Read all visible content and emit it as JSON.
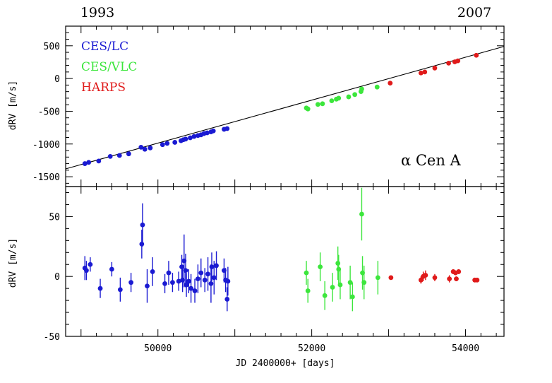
{
  "chart_data": [
    {
      "type": "scatter",
      "panel": "top",
      "ylabel": "dRV  [m/s]",
      "xlim": [
        48800,
        54500
      ],
      "ylim": [
        -1650,
        800
      ],
      "yticks": [
        500,
        0,
        -500,
        -1000,
        -1500
      ],
      "top_labels": {
        "left": "1993",
        "right": "2007"
      },
      "annotation": "α Cen  A",
      "legend": {
        "position": "top-left",
        "entries": [
          "CES/LC",
          "CES/VLC",
          "HARPS"
        ]
      },
      "colors": {
        "CES/LC": "#1a1ad2",
        "CES/VLC": "#3ce63c",
        "HARPS": "#e01a1a",
        "fit": "#000000"
      },
      "fit_line": {
        "x": [
          48800,
          54500
        ],
        "y": [
          -1380,
          490
        ]
      },
      "series": [
        {
          "name": "CES/LC",
          "x": [
            49050,
            49100,
            49230,
            49380,
            49500,
            49620,
            49780,
            49830,
            49900,
            50060,
            50120,
            50220,
            50300,
            50330,
            50360,
            50420,
            50470,
            50520,
            50560,
            50600,
            50640,
            50690,
            50720,
            50860,
            50900
          ],
          "y": [
            -1300,
            -1280,
            -1260,
            -1190,
            -1175,
            -1150,
            -1050,
            -1080,
            -1060,
            -1010,
            -990,
            -975,
            -950,
            -935,
            -925,
            -905,
            -885,
            -870,
            -860,
            -840,
            -830,
            -815,
            -800,
            -775,
            -765
          ]
        },
        {
          "name": "CES/VLC",
          "x": [
            51930,
            51950,
            52080,
            52140,
            52260,
            52320,
            52350,
            52480,
            52560,
            52640,
            52650,
            52850
          ],
          "y": [
            -450,
            -465,
            -395,
            -385,
            -340,
            -315,
            -300,
            -280,
            -245,
            -200,
            -160,
            -130
          ]
        },
        {
          "name": "HARPS",
          "x": [
            53020,
            53420,
            53470,
            53600,
            53780,
            53860,
            53900,
            54140
          ],
          "y": [
            -70,
            85,
            100,
            160,
            235,
            255,
            270,
            355
          ]
        }
      ]
    },
    {
      "type": "scatter",
      "panel": "bottom",
      "xlabel": "JD 2400000+ [days]",
      "ylabel": "dRV  [m/s]",
      "xlim": [
        48800,
        54500
      ],
      "ylim": [
        -50,
        75
      ],
      "xticks": [
        50000,
        52000,
        54000
      ],
      "yticks": [
        50,
        0,
        -50
      ],
      "series": [
        {
          "name": "CES/LC",
          "x": [
            49050,
            49070,
            49120,
            49250,
            49400,
            49510,
            49650,
            49790,
            49800,
            49860,
            49930,
            50090,
            50140,
            50190,
            50270,
            50310,
            50320,
            50340,
            50360,
            50370,
            50400,
            50430,
            50480,
            50520,
            50560,
            50610,
            50650,
            50690,
            50700,
            50730,
            50760,
            50860,
            50880,
            50900,
            50910
          ],
          "y": [
            7,
            5,
            10,
            -10,
            6,
            -11,
            -5,
            27,
            43,
            -8,
            4,
            -6,
            3,
            -5,
            -4,
            8,
            -3,
            13,
            5,
            -7,
            -4,
            -10,
            -12,
            -2,
            3,
            -3,
            2,
            -6,
            8,
            -1,
            9,
            5,
            -3,
            -19,
            -4
          ],
          "err": [
            10,
            8,
            6,
            8,
            6,
            10,
            8,
            12,
            18,
            14,
            12,
            8,
            10,
            8,
            8,
            10,
            10,
            22,
            14,
            10,
            10,
            12,
            10,
            12,
            12,
            10,
            14,
            16,
            12,
            14,
            12,
            10,
            10,
            10,
            12
          ]
        },
        {
          "name": "CES/VLC",
          "x": [
            51930,
            51950,
            52110,
            52170,
            52270,
            52340,
            52350,
            52370,
            52500,
            52530,
            52650,
            52660,
            52680,
            52860
          ],
          "y": [
            3,
            -12,
            8,
            -16,
            -9,
            11,
            6,
            -7,
            -5,
            -17,
            52,
            3,
            -5,
            -1
          ],
          "err": [
            10,
            10,
            12,
            12,
            12,
            14,
            12,
            12,
            14,
            12,
            22,
            14,
            14,
            14
          ]
        },
        {
          "name": "HARPS",
          "x": [
            53030,
            53420,
            53450,
            53480,
            53600,
            53790,
            53840,
            53870,
            53880,
            53910,
            54120,
            54150
          ],
          "y": [
            -1,
            -3,
            0,
            1,
            -1,
            -2,
            4,
            3,
            -2,
            4,
            -3,
            -3
          ],
          "err": [
            1,
            3,
            4,
            4,
            3,
            3,
            2,
            2,
            2,
            2,
            1,
            1
          ]
        }
      ]
    }
  ]
}
